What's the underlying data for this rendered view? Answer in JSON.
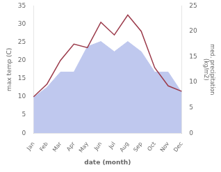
{
  "chart_data": {
    "type": "line",
    "categories": [
      "Jan",
      "Feb",
      "Mar",
      "Apr",
      "May",
      "Jun",
      "Jul",
      "Aug",
      "Sep",
      "Oct",
      "Nov",
      "Dec"
    ],
    "series": [
      {
        "type": "area",
        "color": "#bfc8ee",
        "axis": "y2",
        "values": [
          7,
          9,
          12,
          12,
          17,
          18,
          16,
          18,
          16,
          12,
          12,
          8
        ]
      },
      {
        "type": "line",
        "color": "#9b3a4a",
        "values": [
          10.0,
          13.5,
          20.0,
          24.5,
          23.5,
          30.5,
          27.0,
          32.5,
          28.0,
          18.0,
          13.0,
          11.5
        ]
      }
    ],
    "xlabel": "date (month)",
    "ylabel": "max temp (C)",
    "y2label": "med. precipitation\n(kg/m2)",
    "ylim": [
      0,
      35
    ],
    "yticks": [
      0,
      5,
      10,
      15,
      20,
      25,
      30,
      35
    ],
    "y2lim": [
      0,
      25
    ],
    "y2ticks": [
      0,
      5,
      10,
      15,
      20,
      25
    ],
    "grid": false
  }
}
